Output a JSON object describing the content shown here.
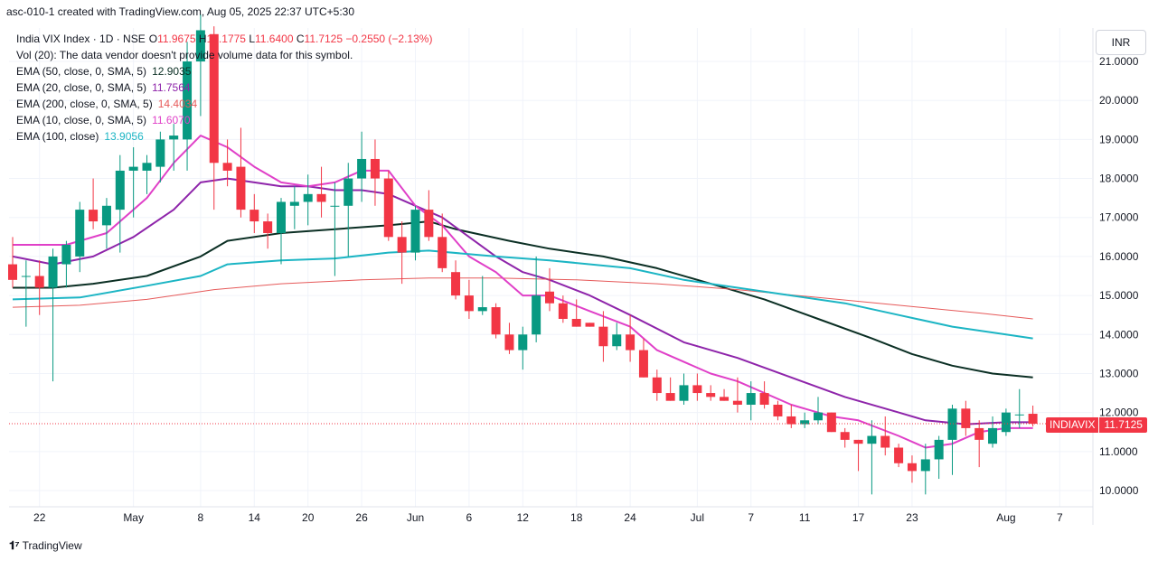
{
  "header": {
    "created_line": "asc-010-1 created with TradingView.com, Aug 05, 2025 22:37 UTC+5:30"
  },
  "legend": {
    "symbol": "India VIX Index · 1D · NSE",
    "ohlc": {
      "o_label": "O",
      "o": "11.9675",
      "h_label": "H",
      "h": "12.1775",
      "l_label": "L",
      "l": "11.6400",
      "c_label": "C",
      "c": "11.7125",
      "chg": "−0.2550 (−2.13%)"
    },
    "vol_note": "Vol (20): The data vendor doesn't provide volume data for this symbol.",
    "ema": [
      {
        "label": "EMA (50, close, 0, SMA, 5)",
        "value": "12.9035",
        "color": "#0b2f24"
      },
      {
        "label": "EMA (20, close, 0, SMA, 5)",
        "value": "11.7564",
        "color": "#8e24aa"
      },
      {
        "label": "EMA (200, close, 0, SMA, 5)",
        "value": "14.4034",
        "color": "#e65a5a"
      },
      {
        "label": "EMA (10, close, 0, SMA, 5)",
        "value": "11.6070",
        "color": "#e040c8"
      },
      {
        "label": "EMA (100, close)",
        "value": "13.9056",
        "color": "#1cb5c4"
      }
    ]
  },
  "currency": "INR",
  "price_tag": {
    "symbol": "INDIAVIX",
    "price": "11.7125"
  },
  "footer": {
    "brand": "TradingView"
  },
  "chart_data": {
    "type": "candlestick",
    "y_ticks": [
      10,
      11,
      12,
      13,
      14,
      15,
      16,
      17,
      18,
      19,
      20,
      21
    ],
    "y_tick_labels": [
      "10.0000",
      "11.0000",
      "12.0000",
      "13.0000",
      "14.0000",
      "15.0000",
      "16.0000",
      "17.0000",
      "18.0000",
      "19.0000",
      "20.0000",
      "21.0000"
    ],
    "ylim": [
      9.5,
      22.0
    ],
    "x_ticks": [
      {
        "label": "22",
        "i": 2
      },
      {
        "label": "May",
        "i": 9
      },
      {
        "label": "8",
        "i": 14
      },
      {
        "label": "14",
        "i": 18
      },
      {
        "label": "20",
        "i": 22
      },
      {
        "label": "26",
        "i": 26
      },
      {
        "label": "Jun",
        "i": 30
      },
      {
        "label": "6",
        "i": 34
      },
      {
        "label": "12",
        "i": 38
      },
      {
        "label": "18",
        "i": 42
      },
      {
        "label": "24",
        "i": 46
      },
      {
        "label": "Jul",
        "i": 51
      },
      {
        "label": "7",
        "i": 55
      },
      {
        "label": "11",
        "i": 59
      },
      {
        "label": "17",
        "i": 63
      },
      {
        "label": "23",
        "i": 67
      },
      {
        "label": "Aug",
        "i": 74
      },
      {
        "label": "7",
        "i": 78
      }
    ],
    "colors": {
      "up": "#089981",
      "down": "#f23645"
    },
    "candles": [
      {
        "o": 15.8,
        "h": 16.5,
        "l": 15.2,
        "c": 15.4
      },
      {
        "o": 15.5,
        "h": 15.9,
        "l": 14.2,
        "c": 15.5
      },
      {
        "o": 15.5,
        "h": 15.9,
        "l": 14.5,
        "c": 15.2
      },
      {
        "o": 15.2,
        "h": 16.2,
        "l": 12.8,
        "c": 16.0
      },
      {
        "o": 15.8,
        "h": 16.4,
        "l": 15.2,
        "c": 16.3
      },
      {
        "o": 16.0,
        "h": 17.4,
        "l": 15.6,
        "c": 17.2
      },
      {
        "o": 17.2,
        "h": 18.0,
        "l": 16.7,
        "c": 16.9
      },
      {
        "o": 16.8,
        "h": 17.5,
        "l": 16.2,
        "c": 17.3
      },
      {
        "o": 17.2,
        "h": 18.6,
        "l": 16.1,
        "c": 18.2
      },
      {
        "o": 18.2,
        "h": 18.8,
        "l": 17.0,
        "c": 18.3
      },
      {
        "o": 18.2,
        "h": 18.6,
        "l": 17.6,
        "c": 18.4
      },
      {
        "o": 18.3,
        "h": 19.2,
        "l": 17.9,
        "c": 19.0
      },
      {
        "o": 19.0,
        "h": 19.4,
        "l": 18.2,
        "c": 19.1
      },
      {
        "o": 19.0,
        "h": 21.5,
        "l": 18.2,
        "c": 21.0
      },
      {
        "o": 21.0,
        "h": 22.2,
        "l": 19.6,
        "c": 21.8
      },
      {
        "o": 21.7,
        "h": 21.9,
        "l": 17.2,
        "c": 18.4
      },
      {
        "o": 18.4,
        "h": 19.0,
        "l": 17.8,
        "c": 18.2
      },
      {
        "o": 18.3,
        "h": 19.3,
        "l": 17.0,
        "c": 17.2
      },
      {
        "o": 17.2,
        "h": 17.6,
        "l": 16.6,
        "c": 16.9
      },
      {
        "o": 16.9,
        "h": 17.1,
        "l": 16.2,
        "c": 16.6
      },
      {
        "o": 16.6,
        "h": 17.5,
        "l": 15.8,
        "c": 17.4
      },
      {
        "o": 17.3,
        "h": 17.8,
        "l": 16.7,
        "c": 17.4
      },
      {
        "o": 17.4,
        "h": 18.1,
        "l": 16.8,
        "c": 17.6
      },
      {
        "o": 17.6,
        "h": 18.3,
        "l": 17.0,
        "c": 17.4
      },
      {
        "o": 17.3,
        "h": 17.9,
        "l": 15.5,
        "c": 17.3
      },
      {
        "o": 17.3,
        "h": 18.4,
        "l": 16.0,
        "c": 18.0
      },
      {
        "o": 18.0,
        "h": 19.2,
        "l": 17.4,
        "c": 18.5
      },
      {
        "o": 18.5,
        "h": 19.0,
        "l": 17.3,
        "c": 18.0
      },
      {
        "o": 18.0,
        "h": 18.2,
        "l": 16.4,
        "c": 16.5
      },
      {
        "o": 16.5,
        "h": 16.9,
        "l": 15.3,
        "c": 16.1
      },
      {
        "o": 16.1,
        "h": 17.3,
        "l": 15.9,
        "c": 17.2
      },
      {
        "o": 17.2,
        "h": 17.7,
        "l": 16.4,
        "c": 16.5
      },
      {
        "o": 16.5,
        "h": 17.1,
        "l": 15.6,
        "c": 15.7
      },
      {
        "o": 15.6,
        "h": 15.9,
        "l": 14.9,
        "c": 15.0
      },
      {
        "o": 15.0,
        "h": 15.4,
        "l": 14.4,
        "c": 14.6
      },
      {
        "o": 14.6,
        "h": 15.5,
        "l": 14.5,
        "c": 14.7
      },
      {
        "o": 14.7,
        "h": 14.8,
        "l": 13.9,
        "c": 14.0
      },
      {
        "o": 14.0,
        "h": 14.3,
        "l": 13.5,
        "c": 13.6
      },
      {
        "o": 13.6,
        "h": 14.2,
        "l": 13.1,
        "c": 14.0
      },
      {
        "o": 14.0,
        "h": 16.0,
        "l": 13.8,
        "c": 15.0
      },
      {
        "o": 15.1,
        "h": 15.7,
        "l": 14.6,
        "c": 14.8
      },
      {
        "o": 14.8,
        "h": 15.0,
        "l": 14.3,
        "c": 14.4
      },
      {
        "o": 14.4,
        "h": 14.9,
        "l": 14.2,
        "c": 14.2
      },
      {
        "o": 14.3,
        "h": 14.3,
        "l": 14.2,
        "c": 14.2
      },
      {
        "o": 14.2,
        "h": 14.6,
        "l": 13.3,
        "c": 13.7
      },
      {
        "o": 13.7,
        "h": 14.3,
        "l": 13.6,
        "c": 14.0
      },
      {
        "o": 14.0,
        "h": 14.5,
        "l": 13.3,
        "c": 13.6
      },
      {
        "o": 13.6,
        "h": 13.9,
        "l": 12.9,
        "c": 12.9
      },
      {
        "o": 12.9,
        "h": 13.1,
        "l": 12.3,
        "c": 12.5
      },
      {
        "o": 12.5,
        "h": 12.9,
        "l": 12.3,
        "c": 12.3
      },
      {
        "o": 12.3,
        "h": 13.0,
        "l": 12.2,
        "c": 12.7
      },
      {
        "o": 12.7,
        "h": 13.0,
        "l": 12.3,
        "c": 12.5
      },
      {
        "o": 12.5,
        "h": 12.7,
        "l": 12.3,
        "c": 12.4
      },
      {
        "o": 12.4,
        "h": 12.6,
        "l": 12.3,
        "c": 12.3
      },
      {
        "o": 12.3,
        "h": 12.9,
        "l": 12.0,
        "c": 12.2
      },
      {
        "o": 12.2,
        "h": 12.8,
        "l": 11.8,
        "c": 12.5
      },
      {
        "o": 12.5,
        "h": 12.8,
        "l": 12.1,
        "c": 12.2
      },
      {
        "o": 12.2,
        "h": 12.3,
        "l": 11.8,
        "c": 11.9
      },
      {
        "o": 11.9,
        "h": 12.2,
        "l": 11.6,
        "c": 11.7
      },
      {
        "o": 11.7,
        "h": 12.0,
        "l": 11.6,
        "c": 11.8
      },
      {
        "o": 11.8,
        "h": 12.4,
        "l": 11.7,
        "c": 12.0
      },
      {
        "o": 12.0,
        "h": 12.0,
        "l": 11.5,
        "c": 11.5
      },
      {
        "o": 11.5,
        "h": 11.6,
        "l": 11.1,
        "c": 11.3
      },
      {
        "o": 11.3,
        "h": 11.3,
        "l": 10.5,
        "c": 11.2
      },
      {
        "o": 11.2,
        "h": 11.8,
        "l": 9.9,
        "c": 11.4
      },
      {
        "o": 11.4,
        "h": 11.9,
        "l": 10.9,
        "c": 11.1
      },
      {
        "o": 11.1,
        "h": 11.2,
        "l": 10.6,
        "c": 10.7
      },
      {
        "o": 10.7,
        "h": 10.9,
        "l": 10.2,
        "c": 10.5
      },
      {
        "o": 10.5,
        "h": 11.2,
        "l": 9.9,
        "c": 10.8
      },
      {
        "o": 10.8,
        "h": 11.4,
        "l": 10.3,
        "c": 11.3
      },
      {
        "o": 11.3,
        "h": 12.2,
        "l": 10.4,
        "c": 12.1
      },
      {
        "o": 12.1,
        "h": 12.3,
        "l": 11.4,
        "c": 11.6
      },
      {
        "o": 11.6,
        "h": 11.8,
        "l": 10.6,
        "c": 11.3
      },
      {
        "o": 11.2,
        "h": 11.9,
        "l": 11.1,
        "c": 11.6
      },
      {
        "o": 11.5,
        "h": 12.1,
        "l": 11.4,
        "c": 12.0
      },
      {
        "o": 11.95,
        "h": 12.6,
        "l": 11.6,
        "c": 11.95
      },
      {
        "o": 11.9675,
        "h": 12.1775,
        "l": 11.64,
        "c": 11.7125
      }
    ],
    "series": [
      {
        "name": "EMA (50, close, 0, SMA, 5)",
        "color": "#0b2f24",
        "width": 2,
        "values": [
          [
            0,
            15.2
          ],
          [
            3,
            15.2
          ],
          [
            6,
            15.3
          ],
          [
            10,
            15.5
          ],
          [
            14,
            16.0
          ],
          [
            16,
            16.4
          ],
          [
            20,
            16.6
          ],
          [
            24,
            16.7
          ],
          [
            28,
            16.8
          ],
          [
            31,
            16.9
          ],
          [
            33,
            16.7
          ],
          [
            37,
            16.4
          ],
          [
            40,
            16.2
          ],
          [
            44,
            16.0
          ],
          [
            48,
            15.7
          ],
          [
            52,
            15.3
          ],
          [
            56,
            14.9
          ],
          [
            60,
            14.4
          ],
          [
            64,
            13.9
          ],
          [
            67,
            13.5
          ],
          [
            70,
            13.2
          ],
          [
            73,
            13.0
          ],
          [
            76,
            12.9
          ]
        ]
      },
      {
        "name": "EMA (20, close, 0, SMA, 5)",
        "color": "#8e24aa",
        "width": 2,
        "values": [
          [
            0,
            16.0
          ],
          [
            3,
            15.8
          ],
          [
            6,
            16.0
          ],
          [
            9,
            16.5
          ],
          [
            12,
            17.2
          ],
          [
            14,
            17.9
          ],
          [
            16,
            18.0
          ],
          [
            18,
            17.9
          ],
          [
            20,
            17.8
          ],
          [
            22,
            17.8
          ],
          [
            24,
            17.7
          ],
          [
            26,
            17.7
          ],
          [
            28,
            17.6
          ],
          [
            30,
            17.3
          ],
          [
            32,
            17.0
          ],
          [
            34,
            16.5
          ],
          [
            36,
            16.0
          ],
          [
            38,
            15.6
          ],
          [
            40,
            15.4
          ],
          [
            43,
            15.0
          ],
          [
            46,
            14.5
          ],
          [
            50,
            13.8
          ],
          [
            54,
            13.4
          ],
          [
            58,
            12.9
          ],
          [
            62,
            12.4
          ],
          [
            66,
            12.0
          ],
          [
            68,
            11.8
          ],
          [
            71,
            11.7
          ],
          [
            74,
            11.75
          ],
          [
            76,
            11.75
          ]
        ]
      },
      {
        "name": "EMA (200, close, 0, SMA, 5)",
        "color": "#e65a5a",
        "width": 1,
        "values": [
          [
            0,
            14.7
          ],
          [
            5,
            14.75
          ],
          [
            10,
            14.9
          ],
          [
            15,
            15.15
          ],
          [
            20,
            15.3
          ],
          [
            26,
            15.4
          ],
          [
            31,
            15.45
          ],
          [
            36,
            15.45
          ],
          [
            42,
            15.4
          ],
          [
            48,
            15.3
          ],
          [
            54,
            15.15
          ],
          [
            60,
            14.95
          ],
          [
            66,
            14.75
          ],
          [
            72,
            14.55
          ],
          [
            76,
            14.4
          ]
        ]
      },
      {
        "name": "EMA (10, close, 0, SMA, 5)",
        "color": "#e040c8",
        "width": 2,
        "values": [
          [
            0,
            16.3
          ],
          [
            2,
            16.3
          ],
          [
            4,
            16.3
          ],
          [
            7,
            16.6
          ],
          [
            10,
            17.5
          ],
          [
            12,
            18.4
          ],
          [
            14,
            19.1
          ],
          [
            16,
            18.8
          ],
          [
            18,
            18.3
          ],
          [
            20,
            17.9
          ],
          [
            22,
            17.8
          ],
          [
            24,
            17.9
          ],
          [
            26,
            18.2
          ],
          [
            28,
            18.2
          ],
          [
            30,
            17.3
          ],
          [
            32,
            16.8
          ],
          [
            34,
            16.0
          ],
          [
            36,
            15.6
          ],
          [
            38,
            15.0
          ],
          [
            40,
            15.0
          ],
          [
            43,
            14.6
          ],
          [
            46,
            14.2
          ],
          [
            48,
            13.6
          ],
          [
            52,
            13.0
          ],
          [
            54,
            12.8
          ],
          [
            58,
            12.2
          ],
          [
            61,
            11.9
          ],
          [
            63,
            11.8
          ],
          [
            66,
            11.4
          ],
          [
            68,
            11.1
          ],
          [
            70,
            11.2
          ],
          [
            72,
            11.5
          ],
          [
            74,
            11.6
          ],
          [
            76,
            11.6
          ]
        ]
      },
      {
        "name": "EMA (100, close)",
        "color": "#1cb5c4",
        "width": 2,
        "values": [
          [
            0,
            14.9
          ],
          [
            5,
            14.95
          ],
          [
            10,
            15.25
          ],
          [
            14,
            15.5
          ],
          [
            16,
            15.8
          ],
          [
            20,
            15.9
          ],
          [
            24,
            15.95
          ],
          [
            28,
            16.1
          ],
          [
            31,
            16.15
          ],
          [
            36,
            16.0
          ],
          [
            40,
            15.9
          ],
          [
            46,
            15.7
          ],
          [
            50,
            15.4
          ],
          [
            54,
            15.2
          ],
          [
            58,
            15.0
          ],
          [
            62,
            14.8
          ],
          [
            66,
            14.5
          ],
          [
            70,
            14.2
          ],
          [
            74,
            14.0
          ],
          [
            76,
            13.9
          ]
        ]
      }
    ]
  }
}
